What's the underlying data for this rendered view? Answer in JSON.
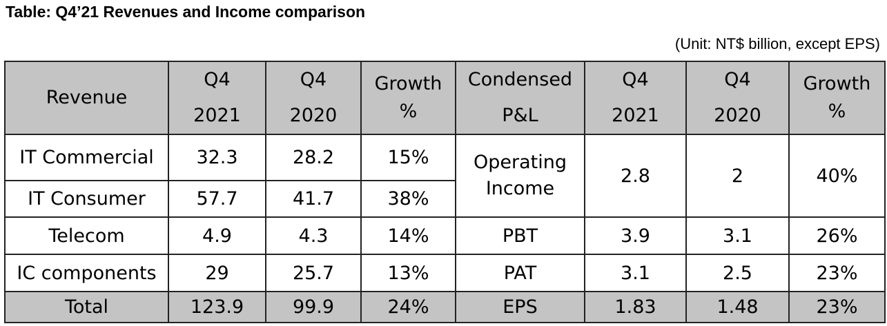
{
  "title": "Table: Q4’21 Revenues and Income comparison",
  "unit": "(Unit: NT$ billion, except EPS)",
  "header": {
    "revenue": "Revenue",
    "q4_2021_a": "Q4",
    "q4_2021_b": "2021",
    "q4_2020_a": "Q4",
    "q4_2020_b": "2020",
    "growth_a": "Growth",
    "growth_b": "%",
    "condensed_a": "Condensed",
    "condensed_b": "P&L",
    "q4_2021_c": "Q4",
    "q4_2021_d": "2021",
    "q4_2020_c": "Q4",
    "q4_2020_d": "2020",
    "growth_c": "Growth",
    "growth_d": "%"
  },
  "revenue_rows": [
    {
      "segment": "IT Commercial",
      "q4_2021": "32.3",
      "q4_2020": "28.2",
      "growth": "15%"
    },
    {
      "segment": "IT Consumer",
      "q4_2021": "57.7",
      "q4_2020": "41.7",
      "growth": "38%"
    },
    {
      "segment": "Telecom",
      "q4_2021": "4.9",
      "q4_2020": "4.3",
      "growth": "14%"
    },
    {
      "segment": "IC components",
      "q4_2021": "29",
      "q4_2020": "25.7",
      "growth": "13%"
    },
    {
      "segment": "Total",
      "q4_2021": "123.9",
      "q4_2020": "99.9",
      "growth": "24%"
    }
  ],
  "pl_rows": [
    {
      "item_line1": "Operating",
      "item_line2": "Income",
      "q4_2021": "2.8",
      "q4_2020": "2",
      "growth": "40%"
    },
    {
      "item": "PBT",
      "q4_2021": "3.9",
      "q4_2020": "3.1",
      "growth": "26%"
    },
    {
      "item": "PAT",
      "q4_2021": "3.1",
      "q4_2020": "2.5",
      "growth": "23%"
    },
    {
      "item": "EPS",
      "q4_2021": "1.83",
      "q4_2020": "1.48",
      "growth": "23%"
    }
  ]
}
